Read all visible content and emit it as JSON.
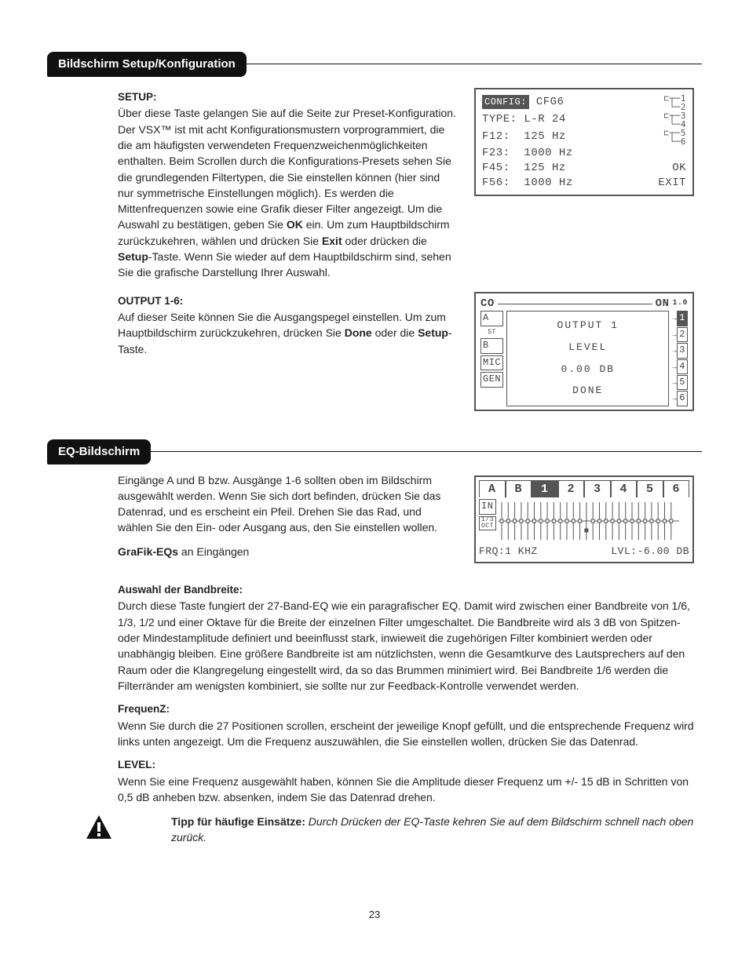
{
  "section1": {
    "title": "Bildschirm Setup/Konfiguration",
    "setup": {
      "heading": "SETUP:",
      "body": "Über diese Taste gelangen Sie auf die Seite zur Preset-Konfiguration. Der VSX™ ist mit acht Konfigurationsmustern vorprogrammiert, die die am häufigsten verwendeten Frequenzweichenmöglichkeiten enthalten. Beim Scrollen durch die Konfigurations-Presets sehen Sie die grundlegenden Filtertypen, die Sie einstellen können (hier sind nur symmetrische Einstellungen möglich). Es werden die Mittenfrequenzen sowie eine Grafik dieser Filter angezeigt. Um die Auswahl zu bestätigen, geben Sie ",
      "bold1": "OK",
      "body2": " ein. Um zum Hauptbildschirm zurückzukehren, wählen und drücken Sie ",
      "bold2": "Exit",
      "body3": " oder drücken die ",
      "bold3": "Setup",
      "body4": "-Taste. Wenn Sie wieder auf dem Hauptbildschirm sind, sehen Sie die grafische Darstellung Ihrer Auswahl."
    },
    "output": {
      "heading": "OUTPUT 1-6:",
      "body": "Auf dieser Seite können Sie die Ausgangspegel einstellen. Um zum Hauptbildschirm zurückzukehren, drücken Sie ",
      "bold1": "Done",
      "body2": " oder die ",
      "bold2": "Setup",
      "body3": "-Taste."
    }
  },
  "lcd1": {
    "config_label": "CONFIG:",
    "config_val": "CFG6",
    "rows": [
      {
        "l": "TYPE:",
        "r": "L-R 24"
      },
      {
        "l": "F12:",
        "r": "125 Hz"
      },
      {
        "l": "F23:",
        "r": "1000 Hz"
      },
      {
        "l": "F45:",
        "r": "125 Hz"
      },
      {
        "l": "F56:",
        "r": "1000 Hz"
      }
    ],
    "ok": "OK",
    "exit": "EXIT"
  },
  "lcd2": {
    "left": [
      "A",
      "B",
      "MIC",
      "GEN"
    ],
    "title": "OUTPUT 1",
    "sub1": "LEVEL",
    "sub2": "0.00 DB",
    "done": "DONE",
    "right_nums": [
      "1",
      "2",
      "3",
      "4",
      "5",
      "6"
    ],
    "corner_l": "CO",
    "corner_r": "ON",
    "corner_val": "1.0",
    "st": "ST"
  },
  "section2": {
    "title": "EQ-Bildschirm",
    "intro": "Eingänge A und B bzw. Ausgänge 1-6 sollten oben im Bildschirm ausgewählt werden. Wenn Sie sich dort befinden, drücken Sie das Datenrad, und es erscheint ein Pfeil. Drehen Sie das Rad, und wählen Sie den Ein- oder Ausgang aus, den Sie einstellen wollen.",
    "grafik_b": "GraFik-EQs",
    "grafik_t": " an Eingängen",
    "bandwidth_h": "Auswahl der Bandbreite:",
    "bandwidth_b": "Durch diese Taste fungiert der 27-Band-EQ wie ein paragrafischer EQ. Damit wird zwischen einer Bandbreite von 1/6, 1/3, 1/2 und einer Oktave für die Breite der einzelnen Filter umgeschaltet. Die Bandbreite wird als 3 dB von Spitzen- oder Mindestamplitude definiert und beeinflusst stark, inwieweit die zugehörigen Filter kombiniert werden oder unabhängig bleiben. Eine größere Bandbreite ist am nützlichsten, wenn die Gesamtkurve des Lautsprechers auf den Raum oder die Klangregelung eingestellt wird, da so das Brummen minimiert wird. Bei Bandbreite 1/6 werden die Filterränder am wenigsten kombiniert, sie sollte nur zur Feedback-Kontrolle verwendet werden.",
    "freq_h": "FrequenZ:",
    "freq_b": "Wenn Sie durch die 27 Positionen scrollen, erscheint der jeweilige Knopf gefüllt, und die entsprechende Frequenz wird links unten angezeigt. Um die Frequenz auszuwählen, die Sie einstellen wollen, drücken Sie das Datenrad.",
    "level_h": "LEVEL:",
    "level_b": "Wenn Sie eine Frequenz ausgewählt haben, können Sie die Amplitude dieser Frequenz um +/- 15 dB in Schritten von 0,5 dB anheben bzw. absenken, indem Sie das Datenrad drehen."
  },
  "lcd3": {
    "tabs": [
      "A",
      "B",
      "1",
      "2",
      "3",
      "4",
      "5",
      "6"
    ],
    "in": "IN",
    "oct": "1/3\nOCT",
    "freq_label": "FRQ:1 KHZ",
    "lvl_label": "LVL:-6.00 DB"
  },
  "tip": {
    "label": "Tipp für häufige Einsätze: ",
    "text": "Durch Drücken der EQ-Taste kehren Sie auf dem Bildschirm schnell nach oben zurück."
  },
  "page_number": "23"
}
